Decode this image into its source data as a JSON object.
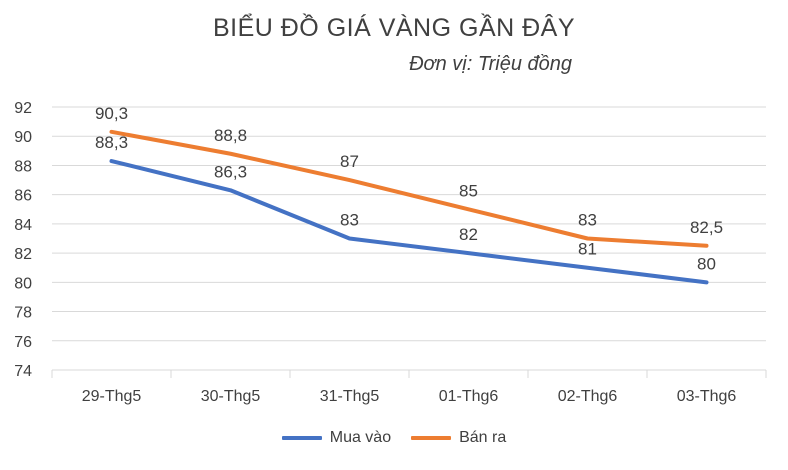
{
  "chart_data": {
    "type": "line",
    "title": "BIỂU ĐỒ GIÁ VÀNG GẦN ĐÂY",
    "subtitle": "Đơn vị: Triệu đồng",
    "categories": [
      "29-Thg5",
      "30-Thg5",
      "31-Thg5",
      "01-Thg6",
      "02-Thg6",
      "03-Thg6"
    ],
    "series": [
      {
        "name": "Mua vào",
        "color": "#4472C4",
        "values": [
          88.3,
          86.3,
          83,
          82,
          81,
          80
        ],
        "labels": [
          "88,3",
          "86,3",
          "83",
          "82",
          "81",
          "80"
        ]
      },
      {
        "name": "Bán ra",
        "color": "#ED7D31",
        "values": [
          90.3,
          88.8,
          87,
          85,
          83,
          82.5
        ],
        "labels": [
          "90,3",
          "88,8",
          "87",
          "85",
          "83",
          "82,5"
        ]
      }
    ],
    "ylim": [
      74,
      92
    ],
    "yticks": [
      74,
      76,
      78,
      80,
      82,
      84,
      86,
      88,
      90,
      92
    ],
    "grid": true,
    "legend": "bottom"
  }
}
